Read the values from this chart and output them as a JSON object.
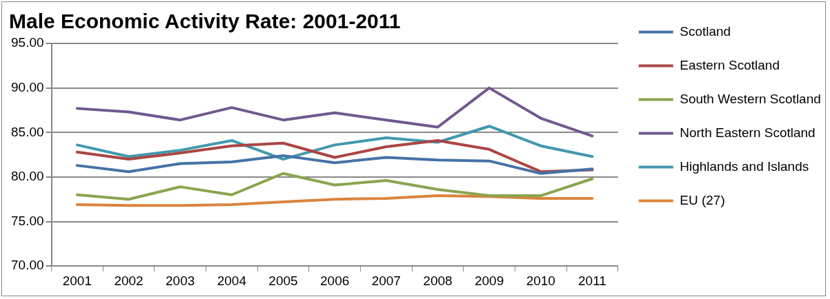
{
  "chart_data": {
    "type": "line",
    "title": "Male Economic Activity Rate: 2001-2011",
    "categories": [
      "2001",
      "2002",
      "2003",
      "2004",
      "2005",
      "2006",
      "2007",
      "2008",
      "2009",
      "2010",
      "2011"
    ],
    "series": [
      {
        "name": "Scotland",
        "color": "#4572a7",
        "values": [
          81.3,
          80.6,
          81.5,
          81.7,
          82.4,
          81.6,
          82.2,
          81.9,
          81.8,
          80.4,
          80.9
        ]
      },
      {
        "name": "Eastern Scotland",
        "color": "#aa4643",
        "values": [
          82.8,
          82.0,
          82.7,
          83.5,
          83.8,
          82.2,
          83.4,
          84.1,
          83.1,
          80.6,
          80.8
        ]
      },
      {
        "name": "South Western Scotland",
        "color": "#89a54e",
        "values": [
          78.0,
          77.5,
          78.9,
          78.0,
          80.4,
          79.1,
          79.6,
          78.6,
          77.9,
          77.9,
          79.8
        ]
      },
      {
        "name": "North Eastern Scotland",
        "color": "#71588f",
        "values": [
          87.7,
          87.3,
          86.4,
          87.8,
          86.4,
          87.2,
          86.4,
          85.6,
          90.0,
          86.6,
          84.6
        ]
      },
      {
        "name": "Highlands and Islands",
        "color": "#4198af",
        "values": [
          83.6,
          82.3,
          83.0,
          84.1,
          82.0,
          83.6,
          84.4,
          83.9,
          85.7,
          83.5,
          82.3
        ]
      },
      {
        "name": "EU (27)",
        "color": "#db843d",
        "values": [
          76.9,
          76.8,
          76.8,
          76.9,
          77.2,
          77.5,
          77.6,
          77.9,
          77.8,
          77.6,
          77.6
        ]
      }
    ],
    "ylim": [
      70,
      95
    ],
    "yticks": [
      {
        "value": 70,
        "label": "70.00"
      },
      {
        "value": 75,
        "label": "75.00"
      },
      {
        "value": 80,
        "label": "80.00"
      },
      {
        "value": 85,
        "label": "85.00"
      },
      {
        "value": 90,
        "label": "90.00"
      },
      {
        "value": 95,
        "label": "95.00"
      }
    ],
    "grid": "y",
    "legend": "right",
    "marker": "none",
    "line_style": "solid"
  }
}
